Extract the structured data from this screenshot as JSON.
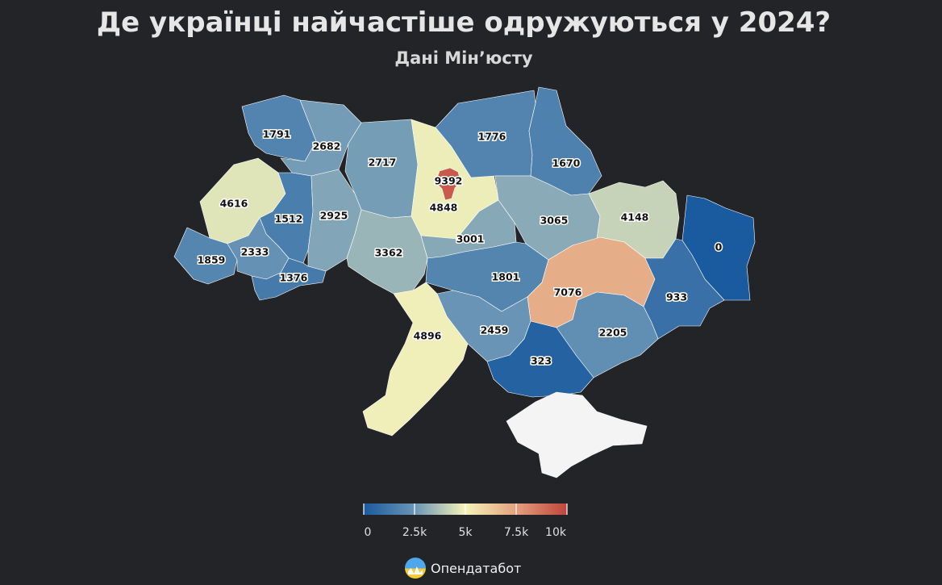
{
  "title": "Де українці найчастіше одружуються у 2024?",
  "subtitle": "Дані Мін’юсту",
  "brand": {
    "name": "Опендатабот",
    "icon": "opendatabot-logo-icon"
  },
  "legend": {
    "min": 0,
    "max": 10000,
    "ticks": [
      0,
      2500,
      5000,
      7500,
      10000
    ],
    "tick_labels": [
      "0",
      "2.5k",
      "5k",
      "7.5k",
      "10k"
    ],
    "colors": [
      "#1a5a9e",
      "#3f7bab",
      "#a7c0c2",
      "#f6f3b9",
      "#e3a07e",
      "#c0443c"
    ]
  },
  "chart_data": {
    "type": "choropleth",
    "values": [
      {
        "region": "Волинська",
        "value": 1791
      },
      {
        "region": "Рівненська",
        "value": 2682
      },
      {
        "region": "Житомирська",
        "value": 2717
      },
      {
        "region": "Київська",
        "value": 4848
      },
      {
        "region": "Київ",
        "value": 9392
      },
      {
        "region": "Чернігівська",
        "value": 1776
      },
      {
        "region": "Сумська",
        "value": 1670
      },
      {
        "region": "Львівська",
        "value": 4616
      },
      {
        "region": "Тернопільська",
        "value": 1512
      },
      {
        "region": "Хмельницька",
        "value": 2925
      },
      {
        "region": "Полтавська",
        "value": 3065
      },
      {
        "region": "Харківська",
        "value": 4148
      },
      {
        "region": "Луганська",
        "value": 0
      },
      {
        "region": "Закарпатська",
        "value": 1859
      },
      {
        "region": "Івано-Франківська",
        "value": 2333
      },
      {
        "region": "Чернівецька",
        "value": 1376
      },
      {
        "region": "Вінницька",
        "value": 3362
      },
      {
        "region": "Черкаська",
        "value": 3001
      },
      {
        "region": "Кіровоградська",
        "value": 1801
      },
      {
        "region": "Дніпропетровська",
        "value": 7076
      },
      {
        "region": "Донецька",
        "value": 933
      },
      {
        "region": "Одеська",
        "value": 4896
      },
      {
        "region": "Миколаївська",
        "value": 2459
      },
      {
        "region": "Запорізька",
        "value": 2205
      },
      {
        "region": "Херсонська",
        "value": 323
      },
      {
        "region": "Крим",
        "value": null
      }
    ]
  }
}
